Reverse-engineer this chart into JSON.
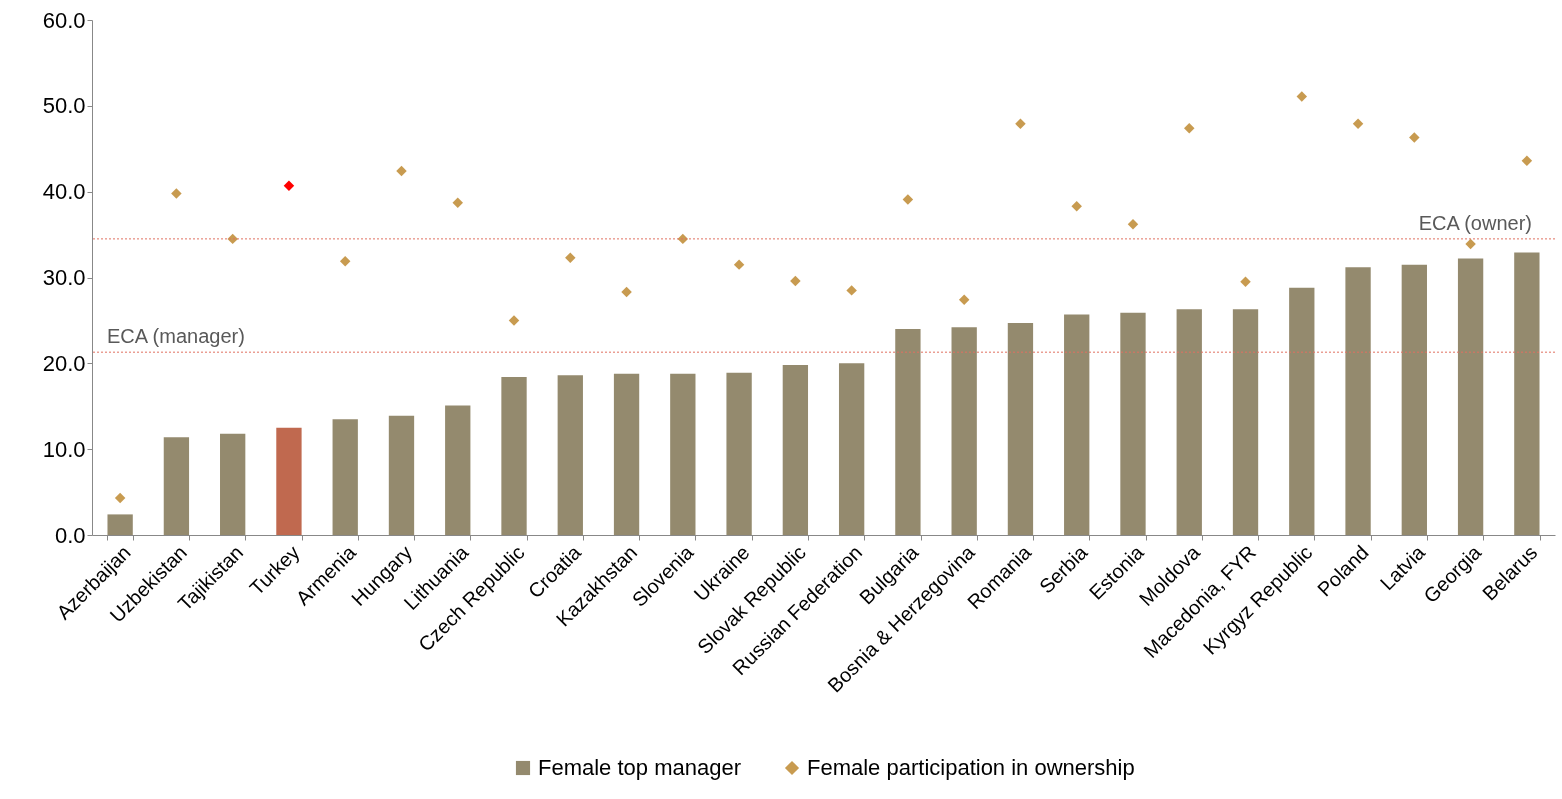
{
  "chart_data": {
    "type": "bar",
    "categories": [
      "Azerbaijan",
      "Uzbekistan",
      "Tajikistan",
      "Turkey",
      "Armenia",
      "Hungary",
      "Lithuania",
      "Czech Republic",
      "Croatia",
      "Kazakhstan",
      "Slovenia",
      "Ukraine",
      "Slovak Republic",
      "Russian Federation",
      "Bulgaria",
      "Bosnia & Herzegovina",
      "Romania",
      "Serbia",
      "Estonia",
      "Moldova",
      "Macedonia, FYR",
      "Kyrgyz Republic",
      "Poland",
      "Latvia",
      "Georgia",
      "Belarus"
    ],
    "series": [
      {
        "name": "Female top manager",
        "color": "#948a6e",
        "colors": [
          "#948a6e",
          "#948a6e",
          "#948a6e",
          "#c0694f",
          "#948a6e",
          "#948a6e",
          "#948a6e",
          "#948a6e",
          "#948a6e",
          "#948a6e",
          "#948a6e",
          "#948a6e",
          "#948a6e",
          "#948a6e",
          "#948a6e",
          "#948a6e",
          "#948a6e",
          "#948a6e",
          "#948a6e",
          "#948a6e",
          "#948a6e",
          "#948a6e",
          "#948a6e",
          "#948a6e",
          "#948a6e",
          "#948a6e"
        ],
        "values": [
          2.4,
          11.4,
          11.8,
          12.5,
          13.5,
          13.9,
          15.1,
          18.4,
          18.6,
          18.8,
          18.8,
          18.9,
          19.8,
          20.0,
          24.0,
          24.2,
          24.7,
          25.7,
          25.9,
          26.3,
          26.3,
          28.8,
          31.2,
          31.5,
          32.2,
          32.9
        ]
      },
      {
        "name": "Female participation in ownership",
        "type": "scatter",
        "marker": "diamond",
        "color": "#c89b50",
        "colors": [
          "#c89b50",
          "#c89b50",
          "#c89b50",
          "#ff0000",
          "#c89b50",
          "#c89b50",
          "#c89b50",
          "#c89b50",
          "#c89b50",
          "#c89b50",
          "#c89b50",
          "#c89b50",
          "#c89b50",
          "#c89b50",
          "#c89b50",
          "#c89b50",
          "#c89b50",
          "#c89b50",
          "#c89b50",
          "#c89b50",
          "#c89b50",
          "#c89b50",
          "#c89b50",
          "#c89b50",
          "#c89b50",
          "#c89b50"
        ],
        "values": [
          4.3,
          39.8,
          34.5,
          40.7,
          31.9,
          42.4,
          38.7,
          25.0,
          32.3,
          28.3,
          34.5,
          31.5,
          29.6,
          28.5,
          39.1,
          27.4,
          47.9,
          38.3,
          36.2,
          47.4,
          29.5,
          51.1,
          47.9,
          46.3,
          33.9,
          43.6
        ]
      }
    ],
    "ylim": [
      0,
      60
    ],
    "yticks": [
      {
        "value": 0,
        "label": "0.0"
      },
      {
        "value": 10,
        "label": "10.0"
      },
      {
        "value": 20,
        "label": "20.0"
      },
      {
        "value": 30,
        "label": "30.0"
      },
      {
        "value": 40,
        "label": "40.0"
      },
      {
        "value": 50,
        "label": "50.0"
      },
      {
        "value": 60,
        "label": "60.0"
      }
    ],
    "ref_lines": [
      {
        "axis": "y",
        "value": 21.3,
        "label": "ECA (manager)",
        "color": "#e07060",
        "line_style": "dotted"
      },
      {
        "axis": "y",
        "value": 34.5,
        "label": "ECA (owner)",
        "color": "#e07060",
        "line_style": "dotted"
      }
    ],
    "legend": "bottom",
    "grid": false
  }
}
